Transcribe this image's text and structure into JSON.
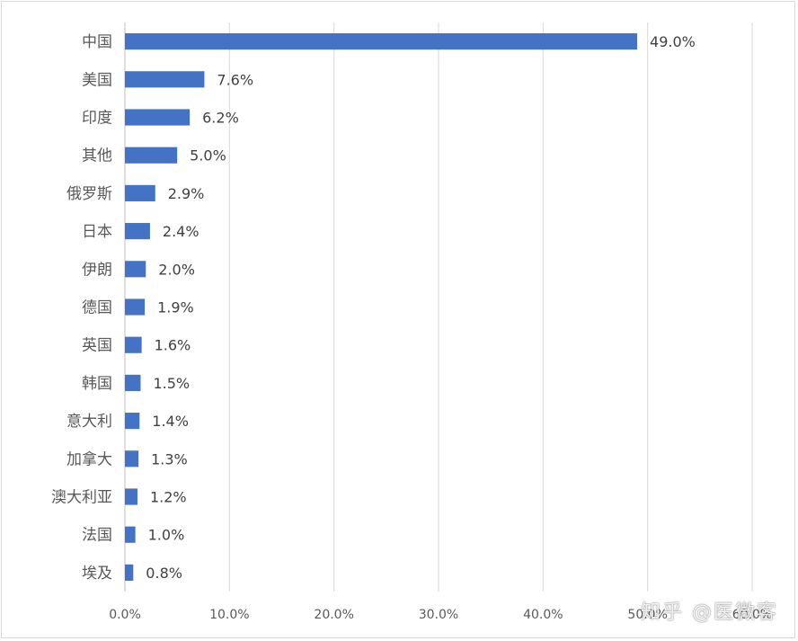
{
  "chart_data": {
    "type": "bar",
    "orientation": "horizontal",
    "title": "",
    "xlabel": "",
    "ylabel": "",
    "categories": [
      "中国",
      "美国",
      "印度",
      "其他",
      "俄罗斯",
      "日本",
      "伊朗",
      "德国",
      "英国",
      "韩国",
      "意大利",
      "加拿大",
      "澳大利亚",
      "法国",
      "埃及"
    ],
    "values": [
      49.0,
      7.6,
      6.2,
      5.0,
      2.9,
      2.4,
      2.0,
      1.9,
      1.6,
      1.5,
      1.4,
      1.3,
      1.2,
      1.0,
      0.8
    ],
    "data_labels": [
      "49.0%",
      "7.6%",
      "6.2%",
      "5.0%",
      "2.9%",
      "2.4%",
      "2.0%",
      "1.9%",
      "1.6%",
      "1.5%",
      "1.4%",
      "1.3%",
      "1.2%",
      "1.0%",
      "0.8%"
    ],
    "xlim": [
      0,
      60
    ],
    "x_ticks": [
      0,
      10,
      20,
      30,
      40,
      50,
      60
    ],
    "x_tick_labels": [
      "0.0%",
      "10.0%",
      "20.0%",
      "30.0%",
      "40.0%",
      "50.0%",
      "60.0%"
    ],
    "grid": "vertical",
    "legend": "none",
    "bar_color": "#4472c4",
    "grid_color": "#d9d9d9"
  },
  "watermark": "知乎 @医微客"
}
